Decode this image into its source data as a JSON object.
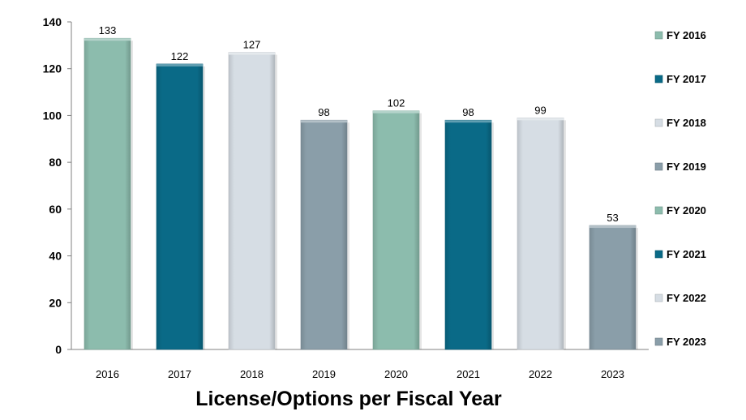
{
  "chart_data": {
    "type": "bar",
    "title": "License/Options per Fiscal Year",
    "xlabel": "",
    "ylabel": "",
    "categories": [
      "2016",
      "2017",
      "2018",
      "2019",
      "2020",
      "2021",
      "2022",
      "2023"
    ],
    "values": [
      133,
      122,
      127,
      98,
      102,
      98,
      99,
      53
    ],
    "ylim": [
      0,
      140
    ],
    "yticks": [
      0,
      20,
      40,
      60,
      80,
      100,
      120,
      140
    ],
    "grid": false,
    "legend_position": "right",
    "legend": [
      {
        "label": "FY 2016",
        "color": "#8cbcad"
      },
      {
        "label": "FY 2017",
        "color": "#0a6a87"
      },
      {
        "label": "FY 2018",
        "color": "#d6dde4"
      },
      {
        "label": "FY 2019",
        "color": "#8a9ea9"
      },
      {
        "label": "FY 2020",
        "color": "#8cbcad"
      },
      {
        "label": "FY 2021",
        "color": "#0a6a87"
      },
      {
        "label": "FY 2022",
        "color": "#d6dde4"
      },
      {
        "label": "FY 2023",
        "color": "#8a9ea9"
      }
    ]
  }
}
